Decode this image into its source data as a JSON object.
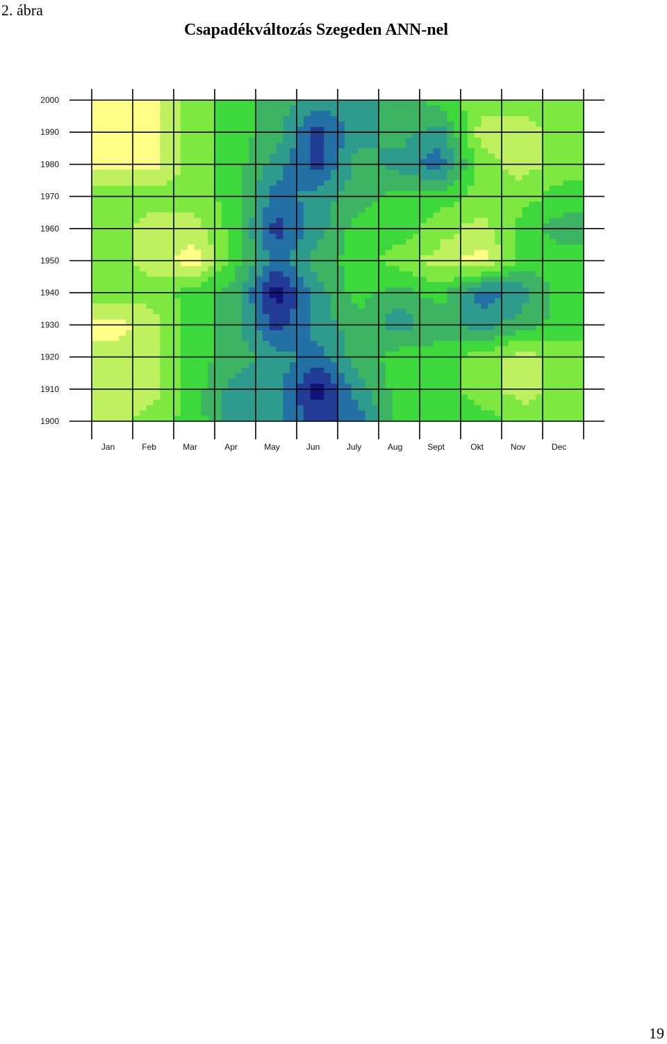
{
  "figure_label": "2. ábra",
  "title": "Csapadékváltozás Szegeden ANN-nel",
  "page_number": "19",
  "chart_data": {
    "type": "heatmap",
    "title": "Csapadékváltozás Szegeden ANN-nel",
    "xlabel": "",
    "ylabel": "",
    "x_categories": [
      "Jan",
      "Feb",
      "Mar",
      "Apr",
      "May",
      "Jun",
      "July",
      "Aug",
      "Sept",
      "Okt",
      "Nov",
      "Dec"
    ],
    "y_ticks": [
      1900,
      1910,
      1920,
      1930,
      1940,
      1950,
      1960,
      1970,
      1980,
      1990,
      2000
    ],
    "ylim": [
      1900,
      2000
    ],
    "grid": true,
    "legend": "none",
    "color_scale": [
      "#ffff88",
      "#bff060",
      "#7de840",
      "#3cd83c",
      "#3cb463",
      "#2e9c8c",
      "#2370a4",
      "#223c96",
      "#101478"
    ],
    "years": [
      1900,
      1910,
      1920,
      1930,
      1940,
      1950,
      1960,
      1970,
      1980,
      1990,
      2000
    ],
    "levels": [
      [
        1,
        2,
        3,
        5,
        5,
        7,
        6,
        3,
        3,
        3,
        2,
        2
      ],
      [
        1,
        1,
        3,
        5,
        5,
        8,
        5,
        3,
        3,
        2,
        1,
        2
      ],
      [
        1,
        1,
        3,
        4,
        5,
        6,
        4,
        3,
        3,
        2,
        1,
        2
      ],
      [
        0,
        1,
        3,
        4,
        7,
        5,
        4,
        5,
        4,
        5,
        4,
        3
      ],
      [
        2,
        2,
        3,
        4,
        8,
        5,
        3,
        4,
        3,
        6,
        5,
        3
      ],
      [
        2,
        1,
        0,
        3,
        6,
        4,
        3,
        2,
        1,
        0,
        3,
        3
      ],
      [
        2,
        1,
        1,
        3,
        7,
        5,
        3,
        3,
        2,
        1,
        3,
        4
      ],
      [
        2,
        2,
        2,
        3,
        6,
        5,
        4,
        3,
        3,
        2,
        2,
        3
      ],
      [
        0,
        0,
        2,
        3,
        5,
        7,
        4,
        5,
        6,
        2,
        1,
        2
      ],
      [
        0,
        0,
        2,
        3,
        4,
        7,
        5,
        4,
        5,
        1,
        1,
        2
      ],
      [
        0,
        0,
        2,
        3,
        4,
        5,
        5,
        4,
        3,
        2,
        2,
        2
      ]
    ]
  }
}
